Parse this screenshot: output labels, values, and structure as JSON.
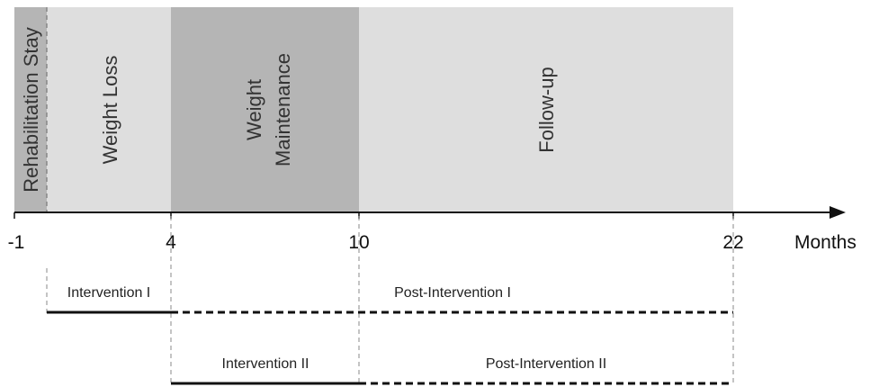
{
  "axis": {
    "unit_label": "Months",
    "ticks": [
      "-1",
      "4",
      "10",
      "22"
    ]
  },
  "phases": [
    {
      "label": "Rehabilitation Stay",
      "line2": "",
      "color": "#b5b5b5"
    },
    {
      "label": "Weight Loss",
      "line2": "",
      "color": "#dedede"
    },
    {
      "label": "Weight",
      "line2": "Maintenance",
      "color": "#b5b5b5"
    },
    {
      "label": "Follow-up",
      "line2": "",
      "color": "#dedede"
    }
  ],
  "periods": {
    "intervention_1": "Intervention I",
    "post_intervention_1": "Post-Intervention I",
    "intervention_2": "Intervention II",
    "post_intervention_2": "Post-Intervention II"
  },
  "colors": {
    "line": "#111111",
    "guide": "#888888"
  }
}
